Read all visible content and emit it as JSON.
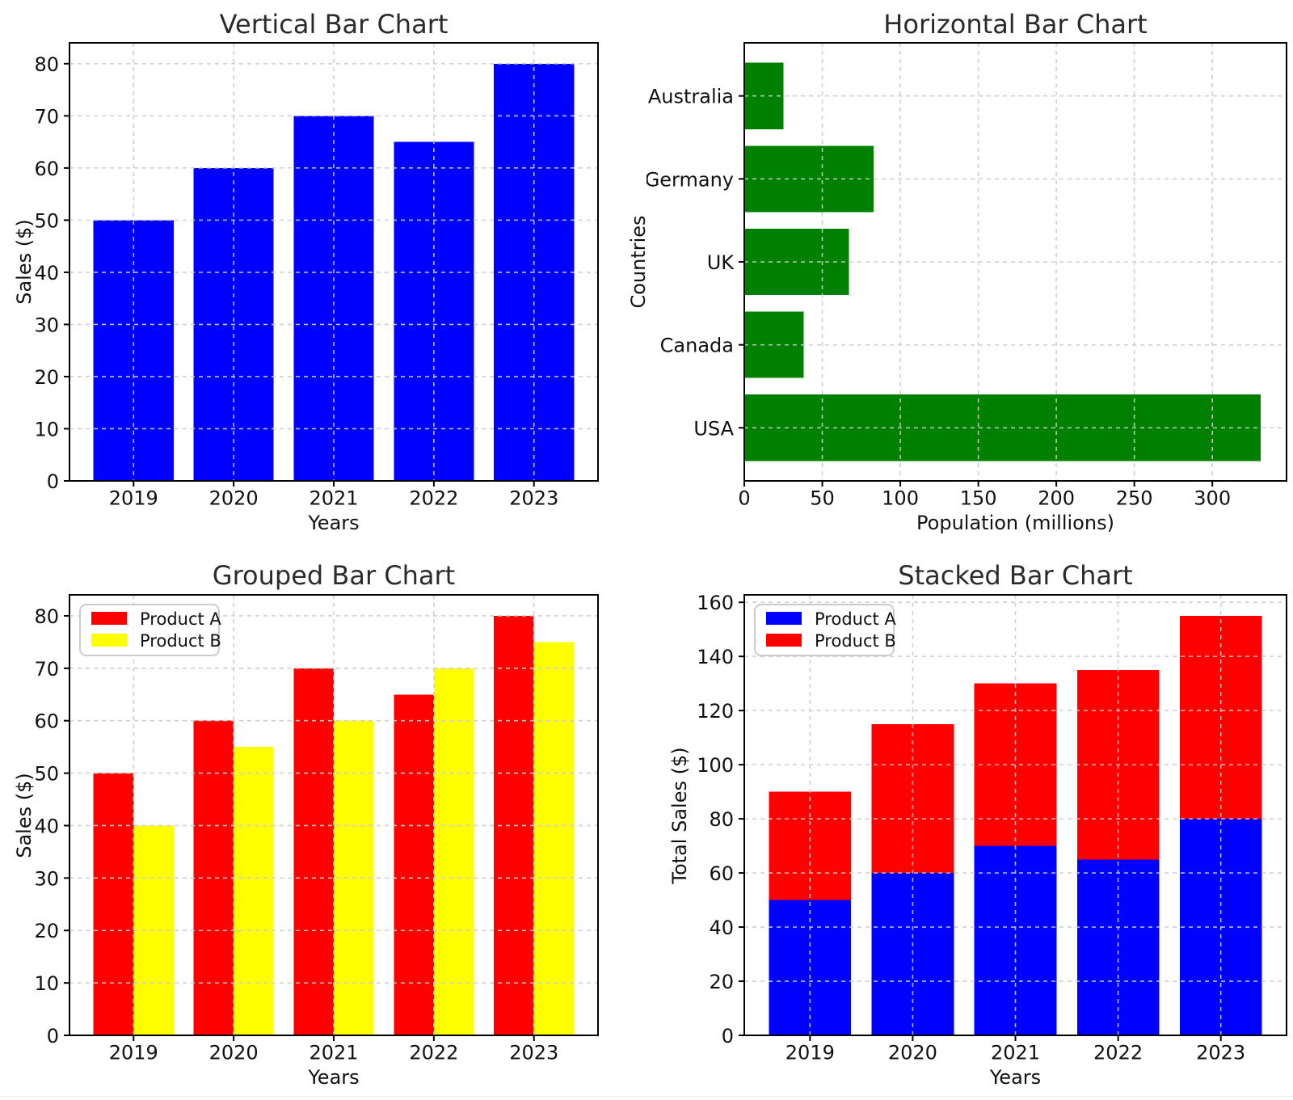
{
  "figure": {
    "background": "#ffffff",
    "text_color": "#111111",
    "title_color": "#2b2b2b",
    "spine_color": "#000000",
    "grid_color": "#cccccc",
    "legend_border_color": "#cccccc",
    "legend_background": "#ffffff"
  },
  "chart_data": [
    {
      "type": "bar",
      "orientation": "vertical",
      "mode": "single",
      "title": "Vertical Bar Chart",
      "xlabel": "Years",
      "ylabel": "Sales ($)",
      "categories": [
        "2019",
        "2020",
        "2021",
        "2022",
        "2023"
      ],
      "values": [
        50,
        60,
        70,
        65,
        80
      ],
      "bar_color": "#0000ff",
      "ylim": [
        0,
        84
      ],
      "yticks": [
        0,
        10,
        20,
        30,
        40,
        50,
        60,
        70,
        80
      ],
      "grid": "dashed-both-axes",
      "legend": null
    },
    {
      "type": "bar",
      "orientation": "horizontal",
      "mode": "single",
      "title": "Horizontal Bar Chart",
      "xlabel": "Population (millions)",
      "ylabel": "Countries",
      "categories": [
        "Australia",
        "Germany",
        "UK",
        "Canada",
        "USA"
      ],
      "values": [
        25,
        83,
        67,
        38,
        331
      ],
      "bar_color": "#008000",
      "xlim": [
        0,
        347.55
      ],
      "xticks": [
        0,
        50,
        100,
        150,
        200,
        250,
        300
      ],
      "grid": "dashed-both-axes",
      "legend": null
    },
    {
      "type": "bar",
      "orientation": "vertical",
      "mode": "grouped",
      "title": "Grouped Bar Chart",
      "xlabel": "Years",
      "ylabel": "Sales ($)",
      "categories": [
        "2019",
        "2020",
        "2021",
        "2022",
        "2023"
      ],
      "series": [
        {
          "name": "Product A",
          "color": "#ff0000",
          "values": [
            50,
            60,
            70,
            65,
            80
          ]
        },
        {
          "name": "Product B",
          "color": "#ffff00",
          "values": [
            40,
            55,
            60,
            70,
            75
          ]
        }
      ],
      "ylim": [
        0,
        84
      ],
      "yticks": [
        0,
        10,
        20,
        30,
        40,
        50,
        60,
        70,
        80
      ],
      "grid": "dashed-both-axes",
      "legend": {
        "position": "upper-left"
      }
    },
    {
      "type": "bar",
      "orientation": "vertical",
      "mode": "stacked",
      "title": "Stacked Bar Chart",
      "xlabel": "Years",
      "ylabel": "Total Sales ($)",
      "categories": [
        "2019",
        "2020",
        "2021",
        "2022",
        "2023"
      ],
      "series": [
        {
          "name": "Product A",
          "color": "#0000ff",
          "values": [
            50,
            60,
            70,
            65,
            80
          ]
        },
        {
          "name": "Product B",
          "color": "#ff0000",
          "values": [
            40,
            55,
            60,
            70,
            75
          ]
        }
      ],
      "stack_totals": [
        90,
        115,
        130,
        135,
        155
      ],
      "ylim": [
        0,
        162.75
      ],
      "yticks": [
        0,
        20,
        40,
        60,
        80,
        100,
        120,
        140,
        160
      ],
      "grid": "dashed-both-axes",
      "legend": {
        "position": "upper-left"
      }
    }
  ]
}
